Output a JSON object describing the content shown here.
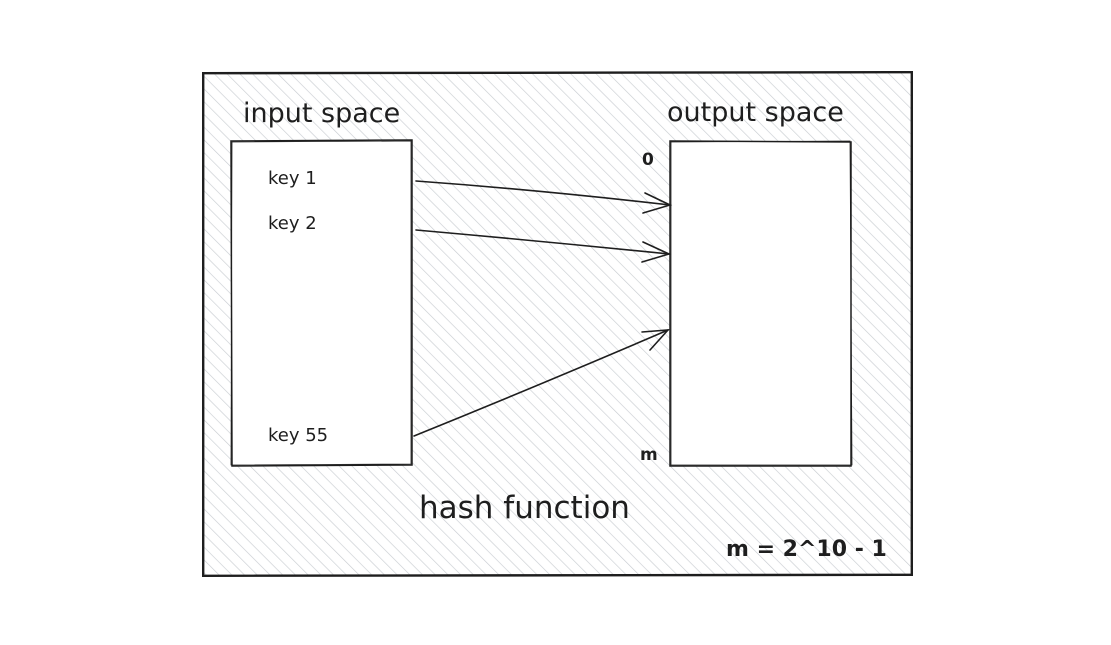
{
  "diagram": {
    "input_space": {
      "title": "input space",
      "keys": [
        "key 1",
        "key 2",
        "key 55"
      ]
    },
    "output_space": {
      "title": "output space",
      "start_label": "0",
      "end_label": "m"
    },
    "caption": "hash function",
    "formula": "m = 2^10 - 1"
  }
}
